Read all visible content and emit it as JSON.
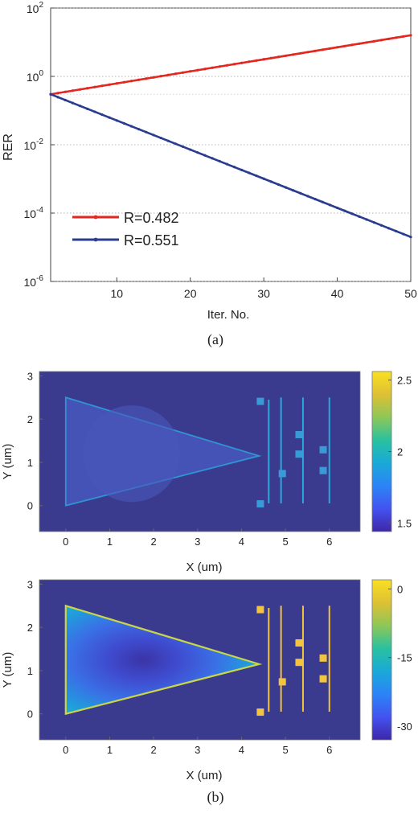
{
  "colors": {
    "red_series": "#e3261e",
    "blue_series": "#2a3c8f",
    "field_background": "#3a3b8f",
    "colormap": [
      "#3e26a8",
      "#4353f0",
      "#2b84f6",
      "#1aa9d8",
      "#29c19f",
      "#8ec758",
      "#dec034",
      "#f9e021"
    ]
  },
  "panel_a": {
    "label": "(a)",
    "chart_data": {
      "type": "line",
      "yscale": "log",
      "xlabel": "Iter. No.",
      "ylabel": "RER",
      "xlim": [
        1,
        50
      ],
      "ylim_exp": [
        -6,
        2
      ],
      "xticks": [
        10,
        20,
        30,
        40,
        50
      ],
      "yticks": [
        {
          "base": "10",
          "exp": "2"
        },
        {
          "base": "10",
          "exp": "0"
        },
        {
          "base": "10",
          "exp": "-2"
        },
        {
          "base": "10",
          "exp": "-4"
        },
        {
          "base": "10",
          "exp": "-6"
        }
      ],
      "grid": "horizontal-dotted",
      "legend": "bottom-left",
      "series": [
        {
          "name": "R=0.482",
          "color": "#e3261e",
          "x_start": 1,
          "x_end": 50,
          "y_start": 0.3,
          "y_end": 16
        },
        {
          "name": "R=0.551",
          "color": "#2a3c8f",
          "x_start": 1,
          "x_end": 50,
          "y_start": 0.3,
          "y_end": 2e-05
        }
      ]
    }
  },
  "panel_b": {
    "label": "(b)",
    "plots": [
      {
        "xlabel": "X (um)",
        "ylabel": "Y (um)",
        "xticks": [
          "0",
          "1",
          "2",
          "3",
          "4",
          "5",
          "6"
        ],
        "yticks": [
          "0",
          "1",
          "2",
          "3"
        ],
        "xlim": [
          -0.6,
          6.7
        ],
        "ylim": [
          -0.6,
          3.1
        ],
        "colorbar_ticks": [
          "2.5",
          "2",
          "1.5"
        ],
        "colorbar_range": [
          1.44,
          2.56
        ],
        "variant": "index"
      },
      {
        "xlabel": "X (um)",
        "ylabel": "Y (um)",
        "xticks": [
          "0",
          "1",
          "2",
          "3",
          "4",
          "5",
          "6"
        ],
        "yticks": [
          "0",
          "1",
          "2",
          "3"
        ],
        "xlim": [
          -0.6,
          6.7
        ],
        "ylim": [
          -0.6,
          3.1
        ],
        "colorbar_ticks": [
          "0",
          "-15",
          "-30"
        ],
        "colorbar_range": [
          -33,
          2
        ],
        "variant": "field"
      }
    ]
  }
}
